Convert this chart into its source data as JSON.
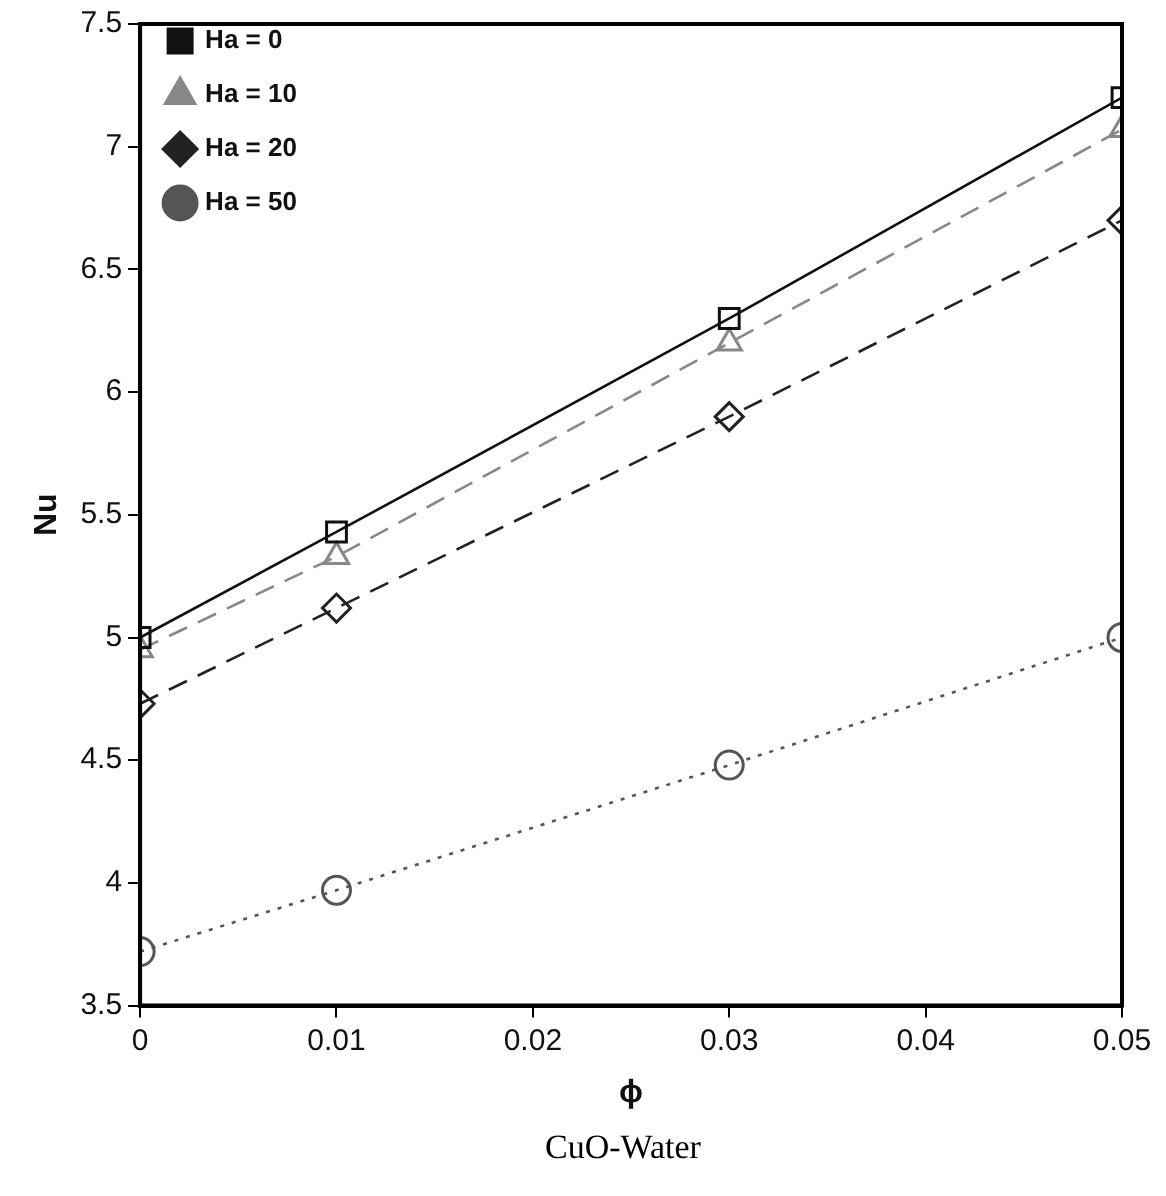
{
  "chart_data": {
    "type": "line",
    "xlabel": "ϕ",
    "ylabel": "Nu",
    "annotations": [
      "CuO-Water"
    ],
    "x": [
      0,
      0.01,
      0.03,
      0.05
    ],
    "xlim": [
      0,
      0.05
    ],
    "xticks": [
      0,
      0.01,
      0.02,
      0.03,
      0.04,
      0.05
    ],
    "ylim": [
      3.5,
      7.5
    ],
    "yticks": [
      3.5,
      4,
      4.5,
      5,
      5.5,
      6,
      6.5,
      7,
      7.5
    ],
    "grid": false,
    "legend": "top left",
    "series": [
      {
        "name": "Ha = 0",
        "color": "#111111",
        "marker": "square",
        "line_style": "solid",
        "values": [
          5.0,
          5.43,
          6.3,
          7.2
        ]
      },
      {
        "name": "Ha = 10",
        "color": "#888888",
        "marker": "triangle",
        "line_style": "dashed",
        "values": [
          4.95,
          5.33,
          6.2,
          7.07
        ]
      },
      {
        "name": "Ha = 20",
        "color": "#222222",
        "marker": "diamond",
        "line_style": "dashed",
        "values": [
          4.73,
          5.12,
          5.9,
          6.7
        ]
      },
      {
        "name": "Ha = 50",
        "color": "#555555",
        "marker": "circle",
        "line_style": "dotted",
        "values": [
          3.72,
          3.97,
          4.48,
          5.0
        ]
      }
    ]
  }
}
